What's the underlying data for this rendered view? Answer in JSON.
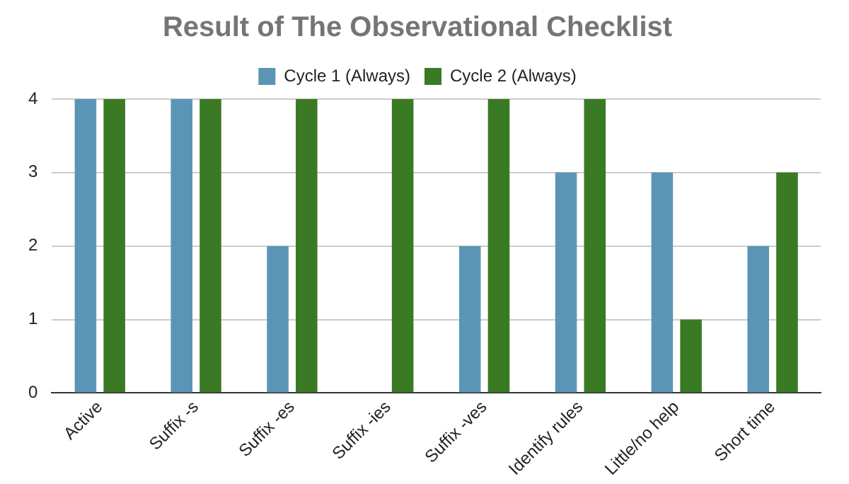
{
  "chart_data": {
    "type": "bar",
    "title": "Result of The Observational Checklist",
    "categories": [
      "Active",
      "Suffix -s",
      "Suffix -es",
      "Suffix -ies",
      "Suffix -ves",
      "Identify rules",
      "Little/no help",
      "Short time"
    ],
    "series": [
      {
        "name": "Cycle 1 (Always)",
        "color": "#5b95b5",
        "values": [
          4,
          4,
          2,
          0,
          2,
          3,
          3,
          2
        ]
      },
      {
        "name": "Cycle 2 (Always)",
        "color": "#3b7a24",
        "values": [
          4,
          4,
          4,
          4,
          4,
          4,
          1,
          3
        ]
      }
    ],
    "ylim": [
      0,
      4
    ],
    "yticks": [
      0,
      1,
      2,
      3,
      4
    ],
    "grid": "y",
    "legend": "top"
  }
}
